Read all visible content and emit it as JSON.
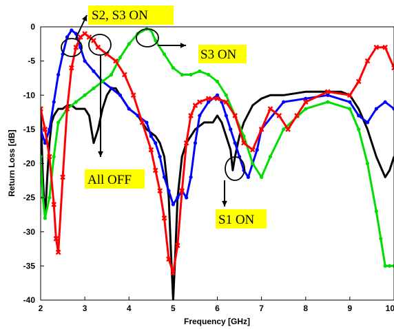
{
  "chart_data": {
    "type": "line",
    "xlabel": "Frequency [GHz]",
    "ylabel": "Return Loss [dB]",
    "xlim": [
      2,
      10
    ],
    "ylim": [
      -40,
      0
    ],
    "xticks": [
      "2",
      "3",
      "4",
      "5",
      "6",
      "7",
      "8",
      "9",
      "10"
    ],
    "yticks": [
      "0",
      "-5",
      "-10",
      "-15",
      "-20",
      "-25",
      "-30",
      "-35",
      "-40"
    ],
    "grid": false,
    "series": [
      {
        "color": "#000000",
        "marker": "none",
        "x": [
          2.0,
          2.05,
          2.1,
          2.15,
          2.2,
          2.25,
          2.3,
          2.4,
          2.5,
          2.6,
          2.7,
          2.8,
          3.0,
          3.1,
          3.15,
          3.2,
          3.3,
          3.4,
          3.5,
          3.6,
          3.7,
          3.8,
          3.9,
          4.0,
          4.2,
          4.4,
          4.6,
          4.7,
          4.8,
          4.9,
          4.95,
          5.0,
          5.05,
          5.1,
          5.2,
          5.3,
          5.5,
          5.7,
          5.9,
          6.0,
          6.1,
          6.2,
          6.3,
          6.35,
          6.4,
          6.5,
          6.6,
          6.8,
          7.0,
          7.2,
          7.5,
          8.0,
          8.5,
          8.8,
          9.0,
          9.2,
          9.4,
          9.6,
          9.8,
          9.9,
          10.0
        ],
        "y": [
          -12,
          -22,
          -28,
          -22,
          -17,
          -14,
          -13,
          -12,
          -12,
          -11.5,
          -11.5,
          -12,
          -12,
          -13,
          -15,
          -17,
          -15,
          -12,
          -10,
          -9,
          -9,
          -10,
          -11,
          -12,
          -13,
          -15,
          -16,
          -17,
          -19,
          -25,
          -33,
          -40,
          -33,
          -25,
          -19,
          -17,
          -15,
          -14,
          -14,
          -13,
          -14,
          -16,
          -18,
          -21,
          -19,
          -16,
          -14,
          -11.5,
          -10.5,
          -10,
          -10,
          -9.5,
          -9.5,
          -9.5,
          -10,
          -12,
          -15,
          -19,
          -22,
          -21,
          -19
        ]
      },
      {
        "color": "#0000ff",
        "marker": "dot",
        "x": [
          2.0,
          2.1,
          2.2,
          2.3,
          2.4,
          2.5,
          2.6,
          2.7,
          2.8,
          2.9,
          3.0,
          3.2,
          3.4,
          3.6,
          3.8,
          4.0,
          4.2,
          4.4,
          4.5,
          4.6,
          4.7,
          4.8,
          4.9,
          5.0,
          5.1,
          5.2,
          5.3,
          5.4,
          5.5,
          5.6,
          5.8,
          6.0,
          6.1,
          6.2,
          6.3,
          6.4,
          6.5,
          6.6,
          6.7,
          6.8,
          6.9,
          7.0,
          7.5,
          8.0,
          8.5,
          9.0,
          9.2,
          9.4,
          9.6,
          9.8,
          10.0
        ],
        "y": [
          -15,
          -17,
          -15,
          -11,
          -7,
          -4,
          -1.5,
          -0.5,
          -1,
          -3,
          -5,
          -6.5,
          -8,
          -9,
          -10,
          -12,
          -13,
          -14,
          -16,
          -17,
          -19,
          -22,
          -24,
          -26,
          -25,
          -24,
          -25,
          -22,
          -17,
          -13,
          -11,
          -10,
          -11,
          -13,
          -15,
          -17,
          -19,
          -21,
          -22,
          -20,
          -18,
          -15,
          -11,
          -10.5,
          -10,
          -11,
          -13,
          -14,
          -12,
          -11,
          -12
        ]
      },
      {
        "color": "#00dd00",
        "marker": "dot",
        "x": [
          2.0,
          2.05,
          2.1,
          2.2,
          2.3,
          2.4,
          2.6,
          2.8,
          3.0,
          3.2,
          3.4,
          3.6,
          3.8,
          4.0,
          4.2,
          4.4,
          4.5,
          4.6,
          4.8,
          5.0,
          5.2,
          5.4,
          5.6,
          5.8,
          6.0,
          6.2,
          6.4,
          6.6,
          6.8,
          7.0,
          7.2,
          7.5,
          8.0,
          8.5,
          9.0,
          9.2,
          9.4,
          9.6,
          9.7,
          9.8,
          9.9,
          10.0
        ],
        "y": [
          -19,
          -25,
          -28,
          -25,
          -19,
          -14,
          -12,
          -11,
          -10,
          -9,
          -8,
          -7,
          -4.5,
          -2.5,
          -1,
          -0.3,
          -0.5,
          -2,
          -4,
          -6,
          -7,
          -7,
          -6.5,
          -7,
          -8,
          -10,
          -13,
          -16,
          -20,
          -22,
          -19,
          -15,
          -12,
          -11,
          -12,
          -15,
          -20,
          -27,
          -31,
          -35,
          -35,
          -35
        ]
      },
      {
        "color": "#ff0000",
        "marker": "x",
        "x": [
          2.0,
          2.1,
          2.2,
          2.3,
          2.35,
          2.4,
          2.5,
          2.6,
          2.7,
          2.8,
          2.9,
          3.0,
          3.1,
          3.2,
          3.3,
          3.5,
          3.7,
          3.9,
          4.1,
          4.3,
          4.5,
          4.6,
          4.7,
          4.8,
          4.9,
          5.0,
          5.1,
          5.2,
          5.3,
          5.4,
          5.5,
          5.6,
          5.8,
          6.0,
          6.2,
          6.4,
          6.6,
          6.8,
          7.0,
          7.2,
          7.4,
          7.6,
          7.8,
          8.0,
          8.5,
          9.0,
          9.2,
          9.4,
          9.6,
          9.8,
          10.0
        ],
        "y": [
          -12,
          -15,
          -19,
          -26,
          -31,
          -33,
          -22,
          -12,
          -6,
          -3,
          -1.5,
          -1,
          -1.5,
          -2,
          -3,
          -4,
          -5,
          -7,
          -10,
          -14,
          -18,
          -21,
          -24,
          -28,
          -34,
          -36,
          -32,
          -24,
          -17,
          -13,
          -11.5,
          -11,
          -10.5,
          -10.5,
          -11,
          -13,
          -17,
          -18,
          -15,
          -12,
          -13,
          -15,
          -13,
          -11,
          -9.5,
          -10,
          -8,
          -5,
          -3,
          -3,
          -6
        ]
      }
    ],
    "annotations": [
      {
        "label": "S2, S3 ON"
      },
      {
        "label": "S3 ON"
      },
      {
        "label": "All OFF"
      },
      {
        "label": "S1 ON"
      }
    ]
  }
}
